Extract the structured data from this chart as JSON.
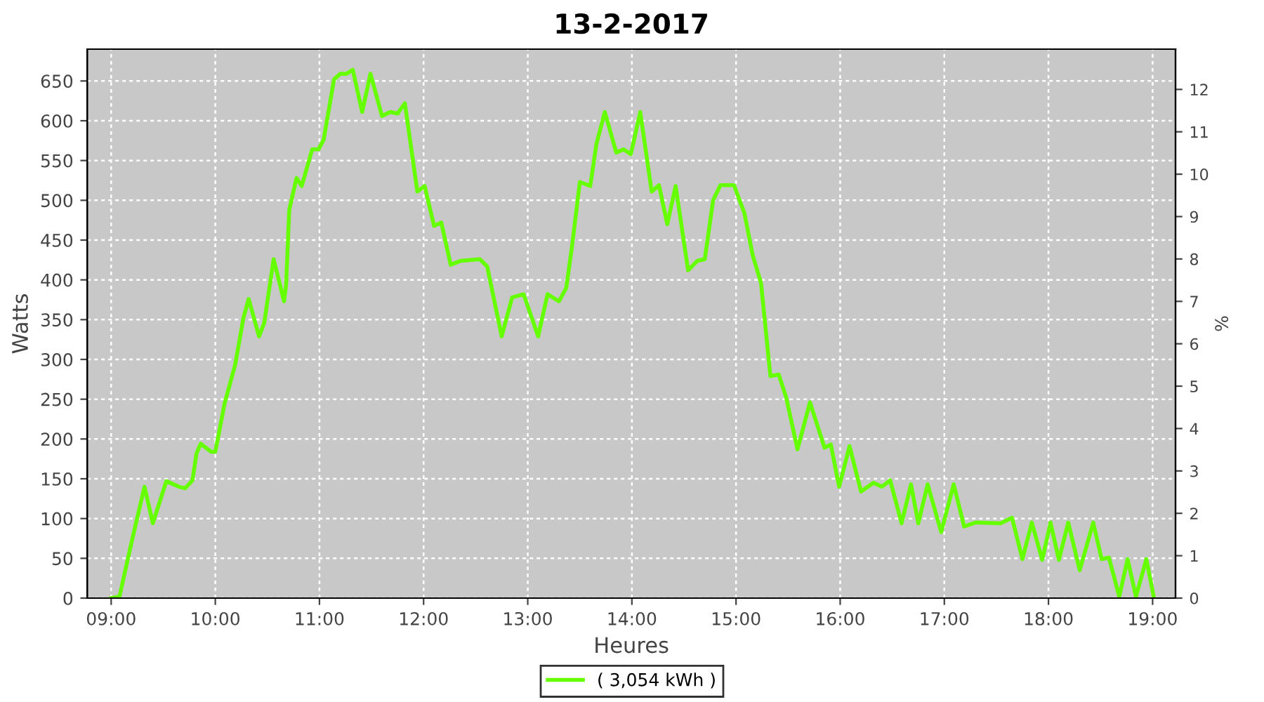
{
  "chart_data": {
    "type": "line",
    "title": "13-2-2017",
    "xlabel": "Heures",
    "ylabel": "Watts",
    "y2label": "%",
    "xlim": [
      8.77,
      19.22
    ],
    "xticks": [
      {
        "value": 9,
        "label": "09:00"
      },
      {
        "value": 10,
        "label": "10:00"
      },
      {
        "value": 11,
        "label": "11:00"
      },
      {
        "value": 12,
        "label": "12:00"
      },
      {
        "value": 13,
        "label": "13:00"
      },
      {
        "value": 14,
        "label": "14:00"
      },
      {
        "value": 15,
        "label": "15:00"
      },
      {
        "value": 16,
        "label": "16:00"
      },
      {
        "value": 17,
        "label": "17:00"
      },
      {
        "value": 18,
        "label": "18:00"
      },
      {
        "value": 19,
        "label": "19:00"
      }
    ],
    "ylim": [
      0,
      690
    ],
    "yticks": [
      0,
      50,
      100,
      150,
      200,
      250,
      300,
      350,
      400,
      450,
      500,
      550,
      600,
      650
    ],
    "y2lim": [
      0,
      12.95
    ],
    "y2ticks": [
      0,
      1,
      2,
      3,
      4,
      5,
      6,
      7,
      8,
      9,
      10,
      11,
      12
    ],
    "grid": true,
    "legend": "bottom",
    "marker": "none",
    "line_style": "solid",
    "series": [
      {
        "name": "( 3,054 kWh )",
        "color": "#66ff00",
        "x": [
          9.0,
          9.08,
          9.19,
          9.32,
          9.4,
          9.53,
          9.65,
          9.71,
          9.78,
          9.82,
          9.86,
          9.96,
          10.0,
          10.09,
          10.19,
          10.27,
          10.32,
          10.42,
          10.47,
          10.56,
          10.66,
          10.68,
          10.71,
          10.78,
          10.83,
          10.93,
          10.99,
          11.04,
          11.14,
          11.2,
          11.26,
          11.32,
          11.41,
          11.49,
          11.6,
          11.68,
          11.75,
          11.82,
          11.94,
          12.01,
          12.1,
          12.17,
          12.26,
          12.36,
          12.54,
          12.61,
          12.75,
          12.85,
          12.96,
          13.1,
          13.19,
          13.3,
          13.37,
          13.43,
          13.5,
          13.6,
          13.66,
          13.74,
          13.85,
          13.92,
          13.99,
          14.08,
          14.19,
          14.26,
          14.34,
          14.42,
          14.54,
          14.63,
          14.7,
          14.78,
          14.85,
          14.98,
          15.08,
          15.16,
          15.24,
          15.33,
          15.41,
          15.48,
          15.59,
          15.71,
          15.85,
          15.91,
          15.99,
          16.09,
          16.2,
          16.32,
          16.4,
          16.48,
          16.59,
          16.68,
          16.75,
          16.84,
          16.97,
          17.09,
          17.19,
          17.3,
          17.54,
          17.65,
          17.75,
          17.84,
          17.94,
          18.02,
          18.1,
          18.19,
          18.3,
          18.43,
          18.51,
          18.58,
          18.68,
          18.76,
          18.84,
          18.94,
          19.01
        ],
        "values": [
          0,
          2,
          67,
          140,
          94,
          147,
          140,
          138,
          148,
          182,
          194,
          184,
          184,
          245,
          293,
          352,
          376,
          329,
          346,
          426,
          373,
          394,
          488,
          528,
          518,
          564,
          564,
          576,
          652,
          659,
          659,
          664,
          611,
          659,
          606,
          611,
          609,
          622,
          511,
          518,
          468,
          472,
          419,
          424,
          426,
          417,
          329,
          378,
          382,
          329,
          382,
          373,
          390,
          447,
          523,
          518,
          571,
          611,
          560,
          564,
          558,
          611,
          511,
          519,
          470,
          518,
          412,
          424,
          426,
          500,
          519,
          519,
          484,
          431,
          396,
          279,
          281,
          253,
          187,
          246,
          189,
          193,
          140,
          191,
          134,
          145,
          140,
          148,
          94,
          143,
          94,
          143,
          83,
          143,
          90,
          95,
          94,
          101,
          49,
          95,
          48,
          95,
          48,
          95,
          35,
          95,
          49,
          51,
          2,
          49,
          2,
          49,
          2
        ]
      }
    ]
  }
}
